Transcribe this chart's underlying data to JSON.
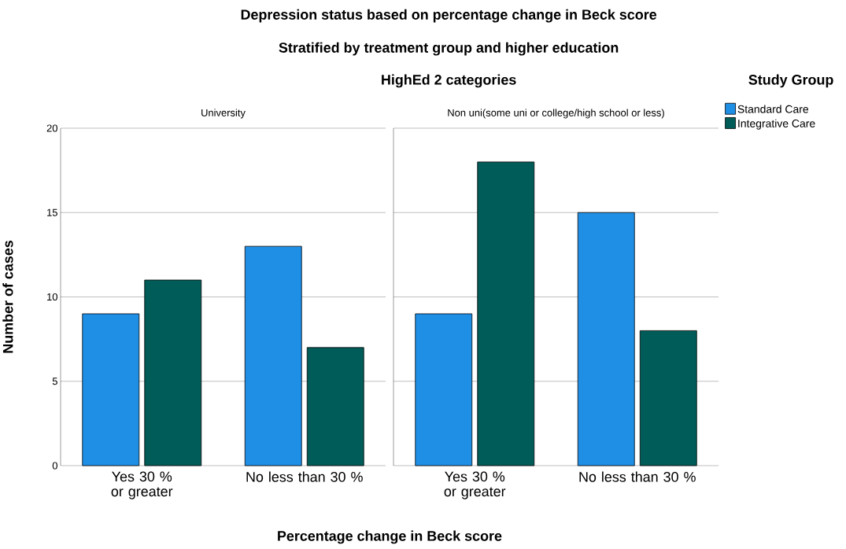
{
  "chart_data": [
    {
      "type": "bar",
      "title": "University",
      "xlabel": "Percentage change in Beck score",
      "ylabel": "Number of cases",
      "annotations": [
        "Depression status based on percentage change in Beck score",
        "Stratified by treatment group and higher education",
        "HighEd 2 categories"
      ],
      "categories": [
        "Yes 30 % or greater",
        "No less than 30 %"
      ],
      "series": [
        {
          "color": "#1f8fe6",
          "values": [
            9,
            13
          ]
        },
        {
          "color": "#005c58",
          "values": [
            11,
            7
          ]
        }
      ],
      "ylim": [
        0,
        20
      ],
      "yticks": [
        0,
        5,
        10,
        15,
        20
      ],
      "grid": "y"
    },
    {
      "type": "bar",
      "title": "Non uni(some uni or college/high school or less)",
      "legend_title": "Study Group",
      "legend": "top right",
      "categories": [
        "Yes 30 % or greater",
        "No less than 30 %"
      ],
      "series": [
        {
          "name": "Standard Care",
          "color": "#1f8fe6",
          "values": [
            9,
            15
          ]
        },
        {
          "name": "Integrative Care",
          "color": "#005c58",
          "values": [
            18,
            8
          ]
        }
      ],
      "ylim": [
        0,
        20
      ],
      "yticks": [
        0,
        5,
        10,
        15,
        20
      ],
      "grid": "y",
      "tick_labels": "x"
    }
  ]
}
